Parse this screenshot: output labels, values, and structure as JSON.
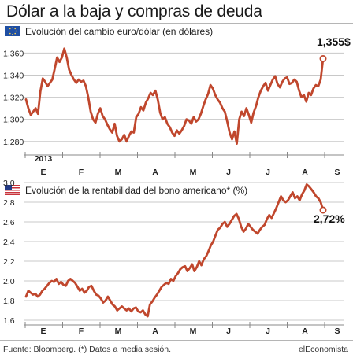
{
  "title": "Dólar a la baja y compras de deuda",
  "footer": {
    "source": "Fuente: Bloomberg. (*) Datos a media sesión.",
    "brand": "elEconomista"
  },
  "colors": {
    "line": "#c0472d",
    "grid": "#c8c8c8",
    "axis": "#888888"
  },
  "flags": {
    "chart1": "eu-flag-icon",
    "chart2": "us-flag-icon"
  },
  "chart_data": [
    {
      "type": "line",
      "title": "Evolución del cambio euro/dólar (en dólares)",
      "year_label": "2013",
      "callout": "1,355$",
      "months": [
        "E",
        "F",
        "M",
        "A",
        "M",
        "J",
        "J",
        "A",
        "S"
      ],
      "yticks": [
        "1,360",
        "1,340",
        "1,320",
        "1,300",
        "1,280"
      ],
      "ylim": [
        1.272,
        1.366
      ],
      "grid": true,
      "series": [
        {
          "values": [
            1.318,
            1.31,
            1.304,
            1.307,
            1.31,
            1.305,
            1.325,
            1.337,
            1.334,
            1.33,
            1.333,
            1.336,
            1.346,
            1.356,
            1.352,
            1.356,
            1.364,
            1.356,
            1.345,
            1.34,
            1.336,
            1.333,
            1.336,
            1.334,
            1.335,
            1.33,
            1.32,
            1.307,
            1.3,
            1.297,
            1.305,
            1.31,
            1.303,
            1.3,
            1.295,
            1.291,
            1.288,
            1.296,
            1.285,
            1.28,
            1.282,
            1.286,
            1.28,
            1.285,
            1.289,
            1.288,
            1.302,
            1.305,
            1.311,
            1.308,
            1.315,
            1.319,
            1.324,
            1.322,
            1.326,
            1.318,
            1.306,
            1.3,
            1.302,
            1.296,
            1.293,
            1.288,
            1.285,
            1.29,
            1.287,
            1.29,
            1.294,
            1.3,
            1.299,
            1.296,
            1.302,
            1.298,
            1.3,
            1.305,
            1.312,
            1.318,
            1.323,
            1.331,
            1.328,
            1.322,
            1.318,
            1.315,
            1.31,
            1.307,
            1.298,
            1.288,
            1.282,
            1.289,
            1.278,
            1.3,
            1.307,
            1.303,
            1.31,
            1.304,
            1.297,
            1.306,
            1.312,
            1.32,
            1.326,
            1.33,
            1.333,
            1.326,
            1.331,
            1.336,
            1.339,
            1.332,
            1.329,
            1.334,
            1.337,
            1.338,
            1.332,
            1.333,
            1.336,
            1.334,
            1.326,
            1.32,
            1.322,
            1.316,
            1.324,
            1.322,
            1.328,
            1.331,
            1.33,
            1.336,
            1.355
          ]
        }
      ]
    },
    {
      "type": "line",
      "title": "Evolución de la rentabilidad del bono americano* (%)",
      "callout": "2,72%",
      "months": [
        "E",
        "F",
        "M",
        "A",
        "M",
        "J",
        "J",
        "A",
        "S"
      ],
      "yticks": [
        "3,0",
        "2,8",
        "2,6",
        "2,4",
        "2,2",
        "2,0",
        "1,8",
        "1,6"
      ],
      "ylim": [
        1.6,
        3.0
      ],
      "grid": true,
      "series": [
        {
          "values": [
            1.84,
            1.9,
            1.88,
            1.86,
            1.87,
            1.84,
            1.86,
            1.9,
            1.92,
            1.95,
            1.98,
            2.0,
            1.99,
            2.02,
            1.97,
            1.99,
            1.96,
            1.95,
            2.0,
            2.02,
            2.0,
            1.98,
            1.94,
            1.9,
            1.92,
            1.88,
            1.9,
            1.94,
            1.95,
            1.9,
            1.86,
            1.85,
            1.82,
            1.78,
            1.8,
            1.84,
            1.8,
            1.76,
            1.74,
            1.7,
            1.72,
            1.74,
            1.72,
            1.7,
            1.72,
            1.69,
            1.72,
            1.73,
            1.69,
            1.68,
            1.7,
            1.66,
            1.64,
            1.76,
            1.79,
            1.83,
            1.86,
            1.9,
            1.94,
            1.96,
            1.98,
            1.97,
            2.02,
            2.0,
            2.05,
            2.08,
            2.12,
            2.14,
            2.15,
            2.1,
            2.13,
            2.17,
            2.1,
            2.14,
            2.2,
            2.16,
            2.22,
            2.25,
            2.3,
            2.36,
            2.4,
            2.46,
            2.52,
            2.54,
            2.58,
            2.6,
            2.55,
            2.58,
            2.62,
            2.66,
            2.68,
            2.63,
            2.55,
            2.5,
            2.53,
            2.58,
            2.55,
            2.52,
            2.5,
            2.48,
            2.52,
            2.55,
            2.57,
            2.63,
            2.67,
            2.64,
            2.69,
            2.74,
            2.8,
            2.86,
            2.82,
            2.8,
            2.82,
            2.86,
            2.9,
            2.84,
            2.86,
            2.82,
            2.88,
            2.92,
            2.98,
            2.96,
            2.93,
            2.9,
            2.86,
            2.84,
            2.8,
            2.72
          ]
        }
      ]
    }
  ]
}
